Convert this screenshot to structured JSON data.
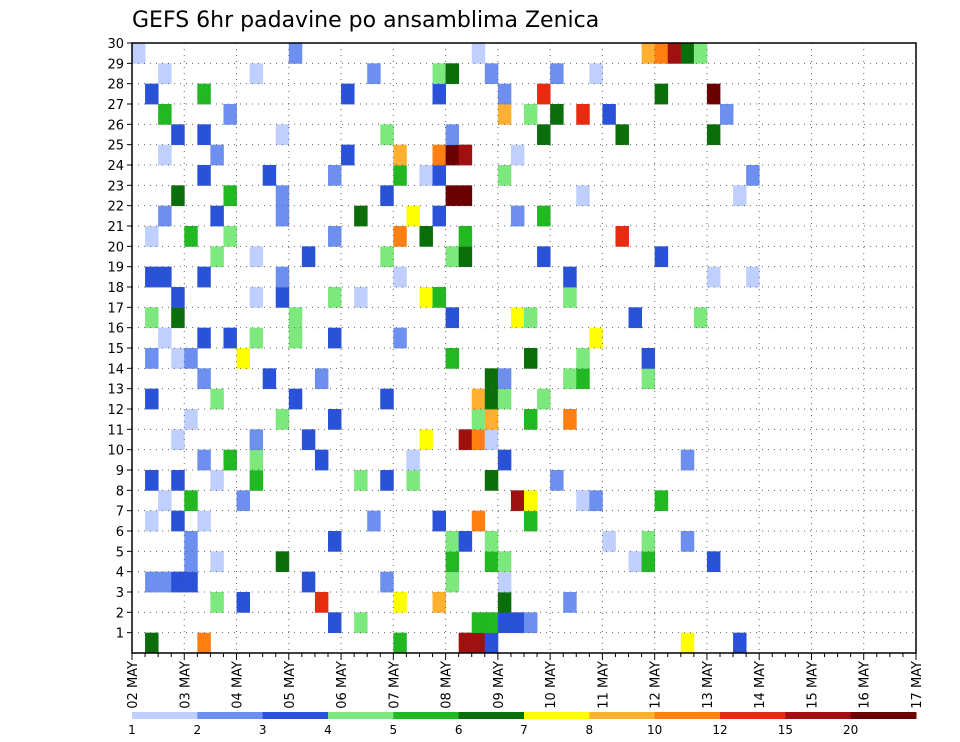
{
  "chart_data": {
    "type": "heatmap",
    "title": "GEFS 6hr padavine po ansamblima Zenica",
    "x_tick_labels": [
      "02 MAY",
      "03 MAY",
      "04 MAY",
      "05 MAY",
      "06 MAY",
      "07 MAY",
      "08 MAY",
      "09 MAY",
      "10 MAY",
      "11 MAY",
      "12 MAY",
      "13 MAY",
      "14 MAY",
      "15 MAY",
      "16 MAY",
      "17 MAY"
    ],
    "y_tick_labels": [
      "1",
      "2",
      "3",
      "4",
      "5",
      "6",
      "7",
      "8",
      "9",
      "10",
      "11",
      "12",
      "13",
      "14",
      "15",
      "16",
      "17",
      "18",
      "19",
      "20",
      "21",
      "22",
      "23",
      "24",
      "25",
      "26",
      "27",
      "28",
      "29",
      "30"
    ],
    "y_range": [
      1,
      30
    ],
    "time_steps": 60,
    "grid": true,
    "legend": {
      "position": "bottom",
      "labels": [
        "1",
        "2",
        "3",
        "4",
        "5",
        "6",
        "7",
        "8",
        "10",
        "12",
        "15",
        "20"
      ],
      "colors": [
        "#bfcfff",
        "#6d8ff0",
        "#2a52d9",
        "#7de87d",
        "#21b821",
        "#0a6e0a",
        "#ffff00",
        "#ffb030",
        "#ff7f10",
        "#e82a10",
        "#a01010",
        "#6b0000"
      ]
    },
    "cells": [
      [
        1,
        1,
        6
      ],
      [
        1,
        5,
        9
      ],
      [
        1,
        20,
        5
      ],
      [
        1,
        25,
        11
      ],
      [
        1,
        26,
        11
      ],
      [
        1,
        27,
        3
      ],
      [
        1,
        42,
        7
      ],
      [
        1,
        46,
        3
      ],
      [
        2,
        15,
        3
      ],
      [
        2,
        17,
        4
      ],
      [
        2,
        26,
        5
      ],
      [
        2,
        27,
        5
      ],
      [
        2,
        28,
        3
      ],
      [
        2,
        29,
        3
      ],
      [
        2,
        30,
        2
      ],
      [
        3,
        6,
        4
      ],
      [
        3,
        8,
        3
      ],
      [
        3,
        14,
        10
      ],
      [
        3,
        20,
        7
      ],
      [
        3,
        23,
        8
      ],
      [
        3,
        28,
        6
      ],
      [
        3,
        33,
        2
      ],
      [
        4,
        1,
        2
      ],
      [
        4,
        2,
        2
      ],
      [
        4,
        3,
        3
      ],
      [
        4,
        4,
        3
      ],
      [
        4,
        13,
        3
      ],
      [
        4,
        19,
        2
      ],
      [
        4,
        24,
        4
      ],
      [
        4,
        28,
        1
      ],
      [
        5,
        4,
        2
      ],
      [
        5,
        6,
        1
      ],
      [
        5,
        11,
        6
      ],
      [
        5,
        24,
        5
      ],
      [
        5,
        27,
        5
      ],
      [
        5,
        28,
        4
      ],
      [
        5,
        38,
        1
      ],
      [
        5,
        39,
        5
      ],
      [
        5,
        44,
        3
      ],
      [
        6,
        4,
        2
      ],
      [
        6,
        15,
        3
      ],
      [
        6,
        24,
        4
      ],
      [
        6,
        25,
        3
      ],
      [
        6,
        27,
        4
      ],
      [
        6,
        36,
        1
      ],
      [
        6,
        39,
        4
      ],
      [
        6,
        42,
        2
      ],
      [
        7,
        1,
        1
      ],
      [
        7,
        3,
        3
      ],
      [
        7,
        5,
        1
      ],
      [
        7,
        18,
        2
      ],
      [
        7,
        23,
        3
      ],
      [
        7,
        26,
        9
      ],
      [
        7,
        30,
        5
      ],
      [
        8,
        2,
        1
      ],
      [
        8,
        4,
        5
      ],
      [
        8,
        8,
        2
      ],
      [
        8,
        29,
        11
      ],
      [
        8,
        30,
        7
      ],
      [
        8,
        34,
        1
      ],
      [
        8,
        35,
        2
      ],
      [
        8,
        40,
        5
      ],
      [
        9,
        1,
        3
      ],
      [
        9,
        3,
        3
      ],
      [
        9,
        6,
        1
      ],
      [
        9,
        9,
        5
      ],
      [
        9,
        17,
        4
      ],
      [
        9,
        19,
        3
      ],
      [
        9,
        21,
        4
      ],
      [
        9,
        27,
        6
      ],
      [
        9,
        32,
        2
      ],
      [
        10,
        5,
        2
      ],
      [
        10,
        7,
        5
      ],
      [
        10,
        9,
        4
      ],
      [
        10,
        14,
        3
      ],
      [
        10,
        21,
        1
      ],
      [
        10,
        28,
        3
      ],
      [
        10,
        42,
        2
      ],
      [
        11,
        3,
        1
      ],
      [
        11,
        9,
        2
      ],
      [
        11,
        13,
        3
      ],
      [
        11,
        22,
        7
      ],
      [
        11,
        25,
        11
      ],
      [
        11,
        26,
        9
      ],
      [
        11,
        27,
        1
      ],
      [
        12,
        4,
        1
      ],
      [
        12,
        11,
        4
      ],
      [
        12,
        15,
        3
      ],
      [
        12,
        26,
        4
      ],
      [
        12,
        27,
        8
      ],
      [
        12,
        30,
        5
      ],
      [
        12,
        33,
        9
      ],
      [
        13,
        1,
        3
      ],
      [
        13,
        6,
        4
      ],
      [
        13,
        12,
        3
      ],
      [
        13,
        19,
        3
      ],
      [
        13,
        26,
        8
      ],
      [
        13,
        27,
        6
      ],
      [
        13,
        28,
        4
      ],
      [
        13,
        31,
        4
      ],
      [
        14,
        5,
        2
      ],
      [
        14,
        10,
        3
      ],
      [
        14,
        14,
        2
      ],
      [
        14,
        27,
        6
      ],
      [
        14,
        28,
        2
      ],
      [
        14,
        33,
        4
      ],
      [
        14,
        34,
        5
      ],
      [
        14,
        39,
        4
      ],
      [
        15,
        1,
        2
      ],
      [
        15,
        3,
        1
      ],
      [
        15,
        4,
        2
      ],
      [
        15,
        8,
        7
      ],
      [
        15,
        24,
        5
      ],
      [
        15,
        30,
        6
      ],
      [
        15,
        34,
        4
      ],
      [
        15,
        39,
        3
      ],
      [
        16,
        2,
        1
      ],
      [
        16,
        5,
        3
      ],
      [
        16,
        7,
        3
      ],
      [
        16,
        9,
        4
      ],
      [
        16,
        12,
        4
      ],
      [
        16,
        15,
        3
      ],
      [
        16,
        20,
        2
      ],
      [
        16,
        35,
        7
      ],
      [
        17,
        1,
        4
      ],
      [
        17,
        3,
        6
      ],
      [
        17,
        12,
        4
      ],
      [
        17,
        24,
        3
      ],
      [
        17,
        29,
        7
      ],
      [
        17,
        30,
        4
      ],
      [
        17,
        38,
        3
      ],
      [
        17,
        43,
        4
      ],
      [
        18,
        3,
        3
      ],
      [
        18,
        9,
        1
      ],
      [
        18,
        11,
        3
      ],
      [
        18,
        15,
        4
      ],
      [
        18,
        17,
        1
      ],
      [
        18,
        22,
        7
      ],
      [
        18,
        23,
        5
      ],
      [
        18,
        33,
        4
      ],
      [
        19,
        1,
        3
      ],
      [
        19,
        2,
        3
      ],
      [
        19,
        5,
        3
      ],
      [
        19,
        11,
        2
      ],
      [
        19,
        20,
        1
      ],
      [
        19,
        33,
        3
      ],
      [
        19,
        44,
        1
      ],
      [
        19,
        47,
        1
      ],
      [
        20,
        6,
        4
      ],
      [
        20,
        9,
        1
      ],
      [
        20,
        13,
        3
      ],
      [
        20,
        19,
        4
      ],
      [
        20,
        24,
        4
      ],
      [
        20,
        25,
        6
      ],
      [
        20,
        31,
        3
      ],
      [
        20,
        40,
        3
      ],
      [
        21,
        1,
        1
      ],
      [
        21,
        4,
        5
      ],
      [
        21,
        7,
        4
      ],
      [
        21,
        15,
        2
      ],
      [
        21,
        20,
        9
      ],
      [
        21,
        22,
        6
      ],
      [
        21,
        25,
        5
      ],
      [
        21,
        37,
        10
      ],
      [
        22,
        2,
        2
      ],
      [
        22,
        6,
        3
      ],
      [
        22,
        11,
        2
      ],
      [
        22,
        17,
        6
      ],
      [
        22,
        21,
        7
      ],
      [
        22,
        23,
        3
      ],
      [
        22,
        29,
        2
      ],
      [
        22,
        31,
        5
      ],
      [
        23,
        3,
        6
      ],
      [
        23,
        7,
        5
      ],
      [
        23,
        11,
        2
      ],
      [
        23,
        19,
        3
      ],
      [
        23,
        24,
        12
      ],
      [
        23,
        25,
        12
      ],
      [
        23,
        34,
        1
      ],
      [
        23,
        46,
        1
      ],
      [
        24,
        5,
        3
      ],
      [
        24,
        10,
        3
      ],
      [
        24,
        15,
        2
      ],
      [
        24,
        20,
        5
      ],
      [
        24,
        22,
        1
      ],
      [
        24,
        23,
        3
      ],
      [
        24,
        28,
        4
      ],
      [
        24,
        47,
        2
      ],
      [
        25,
        2,
        1
      ],
      [
        25,
        6,
        2
      ],
      [
        25,
        16,
        3
      ],
      [
        25,
        20,
        8
      ],
      [
        25,
        23,
        9
      ],
      [
        25,
        24,
        12
      ],
      [
        25,
        25,
        11
      ],
      [
        25,
        29,
        1
      ],
      [
        26,
        3,
        3
      ],
      [
        26,
        5,
        3
      ],
      [
        26,
        11,
        1
      ],
      [
        26,
        19,
        4
      ],
      [
        26,
        24,
        2
      ],
      [
        26,
        31,
        6
      ],
      [
        26,
        37,
        6
      ],
      [
        26,
        44,
        6
      ],
      [
        27,
        2,
        5
      ],
      [
        27,
        7,
        2
      ],
      [
        27,
        28,
        8
      ],
      [
        27,
        30,
        4
      ],
      [
        27,
        32,
        6
      ],
      [
        27,
        34,
        10
      ],
      [
        27,
        36,
        3
      ],
      [
        27,
        45,
        2
      ],
      [
        28,
        1,
        3
      ],
      [
        28,
        5,
        5
      ],
      [
        28,
        16,
        3
      ],
      [
        28,
        23,
        3
      ],
      [
        28,
        28,
        2
      ],
      [
        28,
        31,
        10
      ],
      [
        28,
        40,
        6
      ],
      [
        28,
        44,
        12
      ],
      [
        29,
        2,
        1
      ],
      [
        29,
        9,
        1
      ],
      [
        29,
        18,
        2
      ],
      [
        29,
        23,
        4
      ],
      [
        29,
        24,
        6
      ],
      [
        29,
        27,
        2
      ],
      [
        29,
        32,
        2
      ],
      [
        29,
        35,
        1
      ],
      [
        30,
        0,
        1
      ],
      [
        30,
        12,
        2
      ],
      [
        30,
        26,
        1
      ],
      [
        30,
        39,
        8
      ],
      [
        30,
        40,
        9
      ],
      [
        30,
        41,
        11
      ],
      [
        30,
        42,
        6
      ],
      [
        30,
        43,
        4
      ]
    ]
  }
}
